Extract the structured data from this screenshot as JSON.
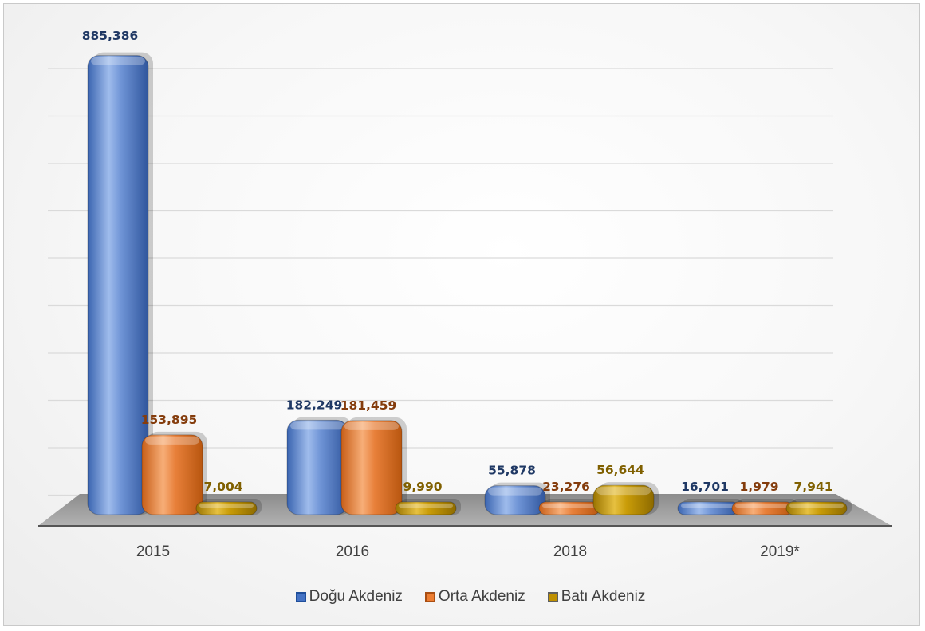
{
  "chart_data": {
    "type": "bar",
    "categories": [
      "2015",
      "2016",
      "2018",
      "2019*"
    ],
    "series": [
      {
        "name": "Doğu Akdeniz",
        "values": [
          885386,
          182249,
          55878,
          16701
        ],
        "labels": [
          "885,386",
          "182,249",
          "55,878",
          "16,701"
        ],
        "color": "#4472C4",
        "label_color": "#1F3864"
      },
      {
        "name": "Orta Akdeniz",
        "values": [
          153895,
          181459,
          23276,
          1979
        ],
        "labels": [
          "153,895",
          "181,459",
          "23,276",
          "1,979"
        ],
        "color": "#ED7D31",
        "label_color": "#843C0C"
      },
      {
        "name": "Batı Akdeniz",
        "values": [
          7004,
          9990,
          56644,
          7941
        ],
        "labels": [
          "7,004",
          "9,990",
          "56,644",
          "7,941"
        ],
        "color": "#BF9000",
        "label_color": "#806000"
      }
    ],
    "ylim": [
      0,
      1000000
    ],
    "grid": true,
    "legend_position": "bottom",
    "title": "",
    "xlabel": "",
    "ylabel": ""
  }
}
